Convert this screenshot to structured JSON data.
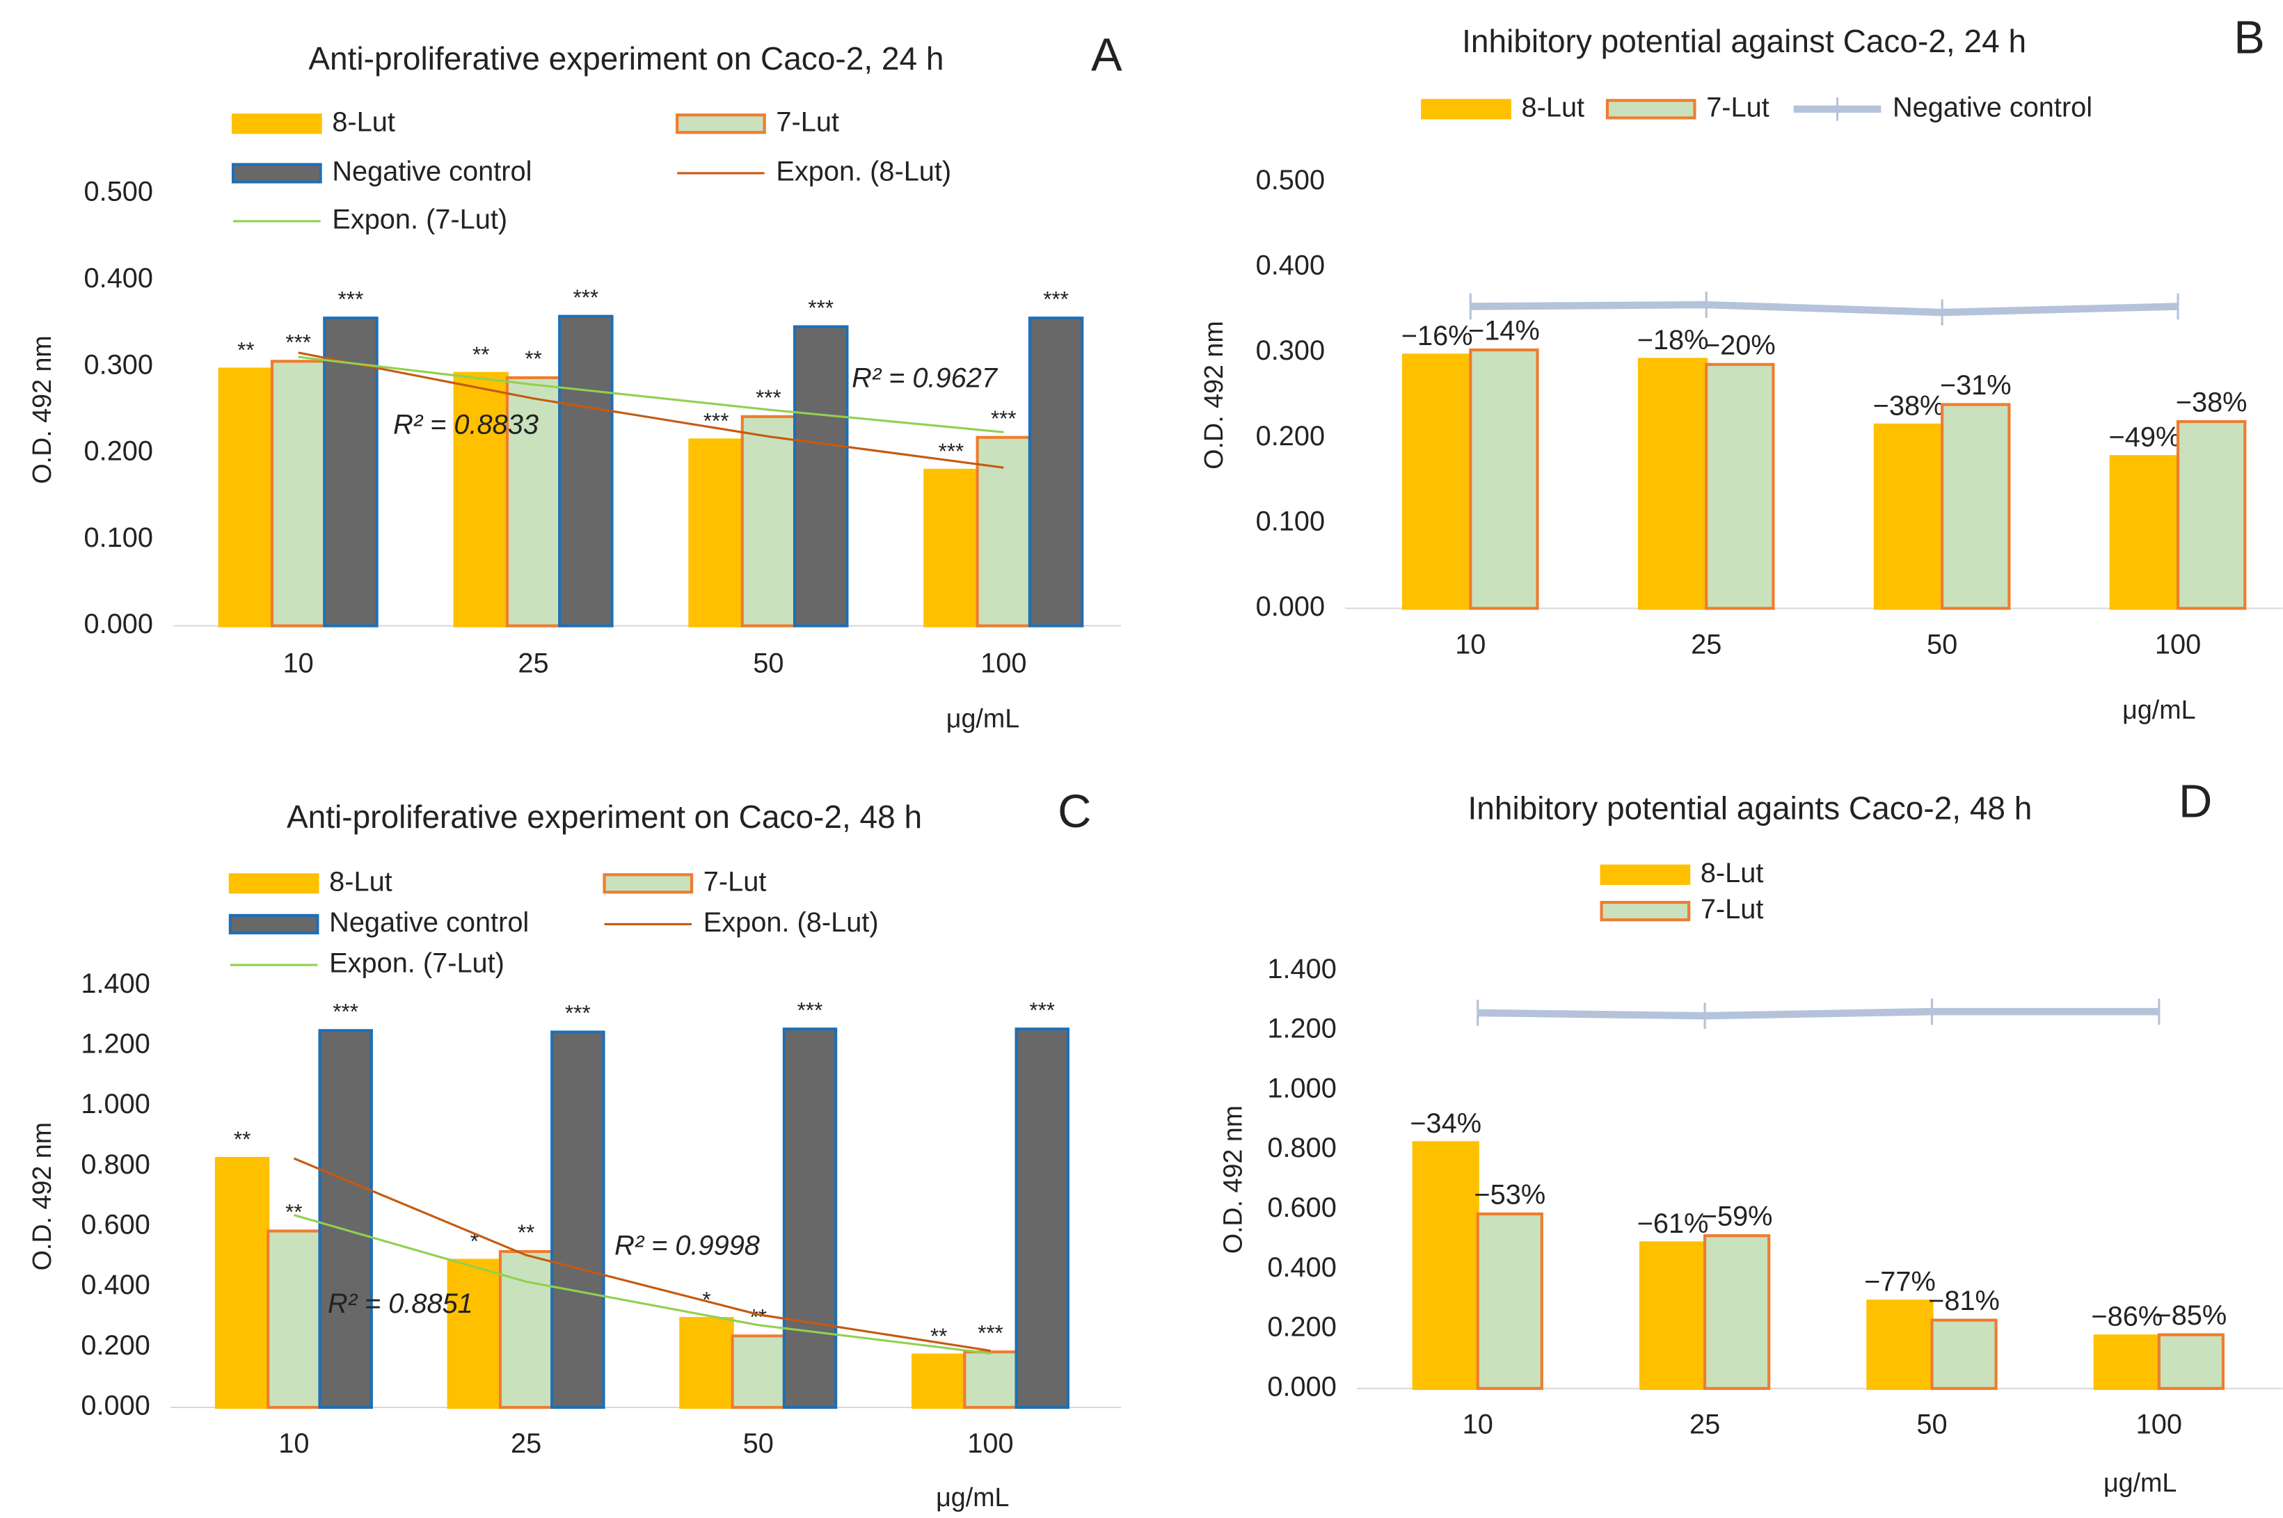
{
  "chart_data": [
    {
      "type": "bar",
      "panel": "A",
      "title": "Anti-proliferative experiment on Caco-2, 24 h",
      "y_label": "O.D. 492 nm",
      "x_label": "μg/mL",
      "categories": [
        "10",
        "25",
        "50",
        "100"
      ],
      "ylim": [
        0,
        0.5
      ],
      "yticks": [
        {
          "value": 0,
          "label": "0.000"
        },
        {
          "value": 0.1,
          "label": "0.100"
        },
        {
          "value": 0.2,
          "label": "0.200"
        },
        {
          "value": 0.3,
          "label": "0.300"
        },
        {
          "value": 0.4,
          "label": "0.400"
        },
        {
          "value": 0.5,
          "label": "0.500"
        }
      ],
      "series": [
        {
          "name": "8-Lut",
          "fill": "#ffc000",
          "color": "#ffc000",
          "values": [
            0.297,
            0.292,
            0.215,
            0.18
          ],
          "labels": [
            "**",
            "**",
            "***",
            "***"
          ]
        },
        {
          "name": "7-Lut",
          "fill": "#c9e2bd",
          "color": "#ed7d31",
          "values": [
            0.306,
            0.287,
            0.242,
            0.218
          ],
          "labels": [
            "***",
            "**",
            "***",
            "***"
          ]
        },
        {
          "name": "Negative control",
          "fill": "#686868",
          "color": "#1f6fb5",
          "values": [
            0.356,
            0.358,
            0.346,
            0.356
          ],
          "labels": [
            "***",
            "***",
            "***",
            "***"
          ]
        }
      ],
      "trendlines": [
        {
          "name": "Expon. (8-Lut)",
          "color": "#c55a11",
          "values": [
            0.316,
            0.263,
            0.219,
            0.183
          ],
          "r2": "R² = 0.8833"
        },
        {
          "name": "Expon. (7-Lut)",
          "color": "#92d050",
          "values": [
            0.311,
            0.279,
            0.25,
            0.224
          ],
          "r2": "R² = 0.9627"
        }
      ]
    },
    {
      "type": "bar",
      "panel": "B",
      "title": "Inhibitory potential against Caco-2, 24 h",
      "y_label": "O.D. 492 nm",
      "x_label": "μg/mL",
      "categories": [
        "10",
        "25",
        "50",
        "100"
      ],
      "ylim": [
        0,
        0.5
      ],
      "yticks": [
        {
          "value": 0,
          "label": "0.000"
        },
        {
          "value": 0.1,
          "label": "0.100"
        },
        {
          "value": 0.2,
          "label": "0.200"
        },
        {
          "value": 0.3,
          "label": "0.300"
        },
        {
          "value": 0.4,
          "label": "0.400"
        },
        {
          "value": 0.5,
          "label": "0.500"
        }
      ],
      "series": [
        {
          "name": "8-Lut",
          "fill": "#ffc000",
          "color": "#ffc000",
          "values": [
            0.297,
            0.292,
            0.215,
            0.178
          ],
          "labels": [
            "−16%",
            "−18%",
            "−38%",
            "−49%"
          ]
        },
        {
          "name": "7-Lut",
          "fill": "#c9e2bd",
          "color": "#ed7d31",
          "values": [
            0.303,
            0.286,
            0.239,
            0.219
          ],
          "labels": [
            "−14%",
            "−20%",
            "−31%",
            "−38%"
          ]
        },
        {
          "name": "Negative control",
          "type": "line",
          "color": "#b4c3da",
          "values": [
            0.354,
            0.356,
            0.347,
            0.354
          ]
        }
      ]
    },
    {
      "type": "bar",
      "panel": "C",
      "title": "Anti-proliferative experiment on Caco-2, 48 h",
      "y_label": "O.D. 492 nm",
      "x_label": "μg/mL",
      "categories": [
        "10",
        "25",
        "50",
        "100"
      ],
      "ylim": [
        0,
        1.4
      ],
      "yticks": [
        {
          "value": 0,
          "label": "0.000"
        },
        {
          "value": 0.2,
          "label": "0.200"
        },
        {
          "value": 0.4,
          "label": "0.400"
        },
        {
          "value": 0.6,
          "label": "0.600"
        },
        {
          "value": 0.8,
          "label": "0.800"
        },
        {
          "value": 1,
          "label": "1.000"
        },
        {
          "value": 1.2,
          "label": "1.200"
        },
        {
          "value": 1.4,
          "label": "1.400"
        }
      ],
      "series": [
        {
          "name": "8-Lut",
          "fill": "#ffc000",
          "color": "#ffc000",
          "values": [
            0.826,
            0.488,
            0.295,
            0.174
          ],
          "labels": [
            "**",
            "*",
            "*",
            "**"
          ]
        },
        {
          "name": "7-Lut",
          "fill": "#c9e2bd",
          "color": "#ed7d31",
          "values": [
            0.585,
            0.517,
            0.237,
            0.184
          ],
          "labels": [
            "**",
            "**",
            "**",
            "***"
          ]
        },
        {
          "name": "Negative control",
          "fill": "#686868",
          "color": "#1f6fb5",
          "values": [
            1.25,
            1.245,
            1.255,
            1.255
          ],
          "labels": [
            "***",
            "***",
            "***",
            "***"
          ]
        }
      ],
      "trendlines": [
        {
          "name": "Expon. (8-Lut)",
          "color": "#c55a11",
          "values": [
            0.826,
            0.505,
            0.308,
            0.188
          ],
          "r2": "R² = 0.8851"
        },
        {
          "name": "Expon. (7-Lut)",
          "color": "#92d050",
          "values": [
            0.638,
            0.417,
            0.273,
            0.179
          ],
          "r2": "R² = 0.9998"
        }
      ]
    },
    {
      "type": "bar",
      "panel": "D",
      "title": "Inhibitory potential againts Caco-2, 48 h",
      "y_label": "O.D. 492 nm",
      "x_label": "μg/mL",
      "categories": [
        "10",
        "25",
        "50",
        "100"
      ],
      "ylim": [
        0,
        1.4
      ],
      "yticks": [
        {
          "value": 0,
          "label": "0.000"
        },
        {
          "value": 0.2,
          "label": "0.200"
        },
        {
          "value": 0.4,
          "label": "0.400"
        },
        {
          "value": 0.6,
          "label": "0.600"
        },
        {
          "value": 0.8,
          "label": "0.800"
        },
        {
          "value": 1,
          "label": "1.000"
        },
        {
          "value": 1.2,
          "label": "1.200"
        },
        {
          "value": 1.4,
          "label": "1.400"
        }
      ],
      "series": [
        {
          "name": "8-Lut",
          "fill": "#ffc000",
          "color": "#ffc000",
          "values": [
            0.824,
            0.488,
            0.293,
            0.176
          ],
          "labels": [
            "−34%",
            "−61%",
            "−77%",
            "−86%"
          ]
        },
        {
          "name": "7-Lut",
          "fill": "#c9e2bd",
          "color": "#ed7d31",
          "values": [
            0.585,
            0.512,
            0.229,
            0.18
          ],
          "labels": [
            "−53%",
            "−59%",
            "−81%",
            "−85%"
          ]
        },
        {
          "type": "line",
          "color": "#b4c3da",
          "values": [
            1.259,
            1.249,
            1.263,
            1.263
          ]
        }
      ]
    }
  ]
}
